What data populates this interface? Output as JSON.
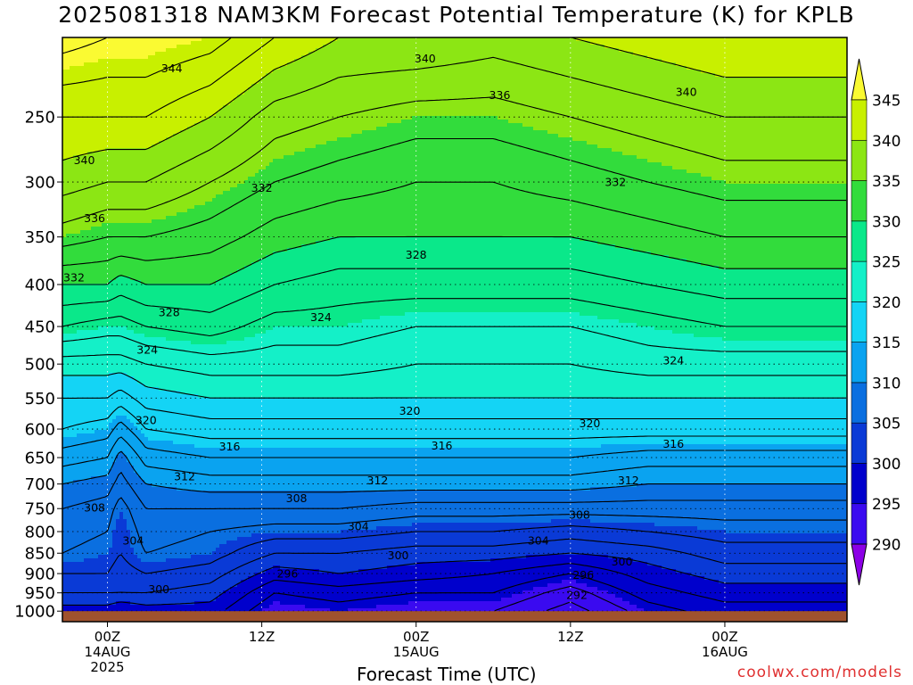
{
  "chart_data": {
    "type": "heatmap",
    "title": "2025081318 NAM3KM Forecast Potential Temperature (K) for KPLB",
    "xlabel": "Forecast Time (UTC)",
    "ylabel": "",
    "y_axis": {
      "scale": "log",
      "reversed": true,
      "ticks": [
        250,
        300,
        350,
        400,
        450,
        500,
        550,
        600,
        650,
        700,
        750,
        800,
        850,
        900,
        950,
        1000
      ],
      "tick_labels": [
        "250",
        "300",
        "350",
        "400",
        "450",
        "500",
        "550",
        "600",
        "650",
        "700",
        "750",
        "800",
        "850",
        "900",
        "950",
        "1000"
      ],
      "range": [
        200,
        1030
      ],
      "ground_level": 1000
    },
    "x_axis": {
      "range_hours": [
        -3.5,
        57.5
      ],
      "ticks": [
        {
          "hour": 0,
          "lines": [
            "00Z",
            "14AUG",
            "2025"
          ]
        },
        {
          "hour": 12,
          "lines": [
            "12Z"
          ]
        },
        {
          "hour": 24,
          "lines": [
            "00Z",
            "15AUG"
          ]
        },
        {
          "hour": 36,
          "lines": [
            "12Z"
          ]
        },
        {
          "hour": 48,
          "lines": [
            "00Z",
            "16AUG"
          ]
        }
      ]
    },
    "colorbar": {
      "levels": [
        290,
        295,
        300,
        305,
        310,
        315,
        320,
        325,
        330,
        335,
        340,
        345
      ],
      "labels": [
        "290",
        "295",
        "300",
        "305",
        "310",
        "315",
        "320",
        "325",
        "330",
        "335",
        "340",
        "345"
      ],
      "colors": [
        "#8c00e6",
        "#3a0af0",
        "#0000cc",
        "#0a3ad6",
        "#0a6fe0",
        "#0aa3f0",
        "#14d4f5",
        "#14f0c8",
        "#0ae88a",
        "#32dc3c",
        "#8ce614",
        "#c8f000",
        "#fafa32"
      ]
    },
    "ground_color": "#a0522d",
    "grid": true,
    "series": [
      {
        "hour": -3.5,
        "profile": [
          [
            1000,
            299
          ],
          [
            950,
            302
          ],
          [
            900,
            304
          ],
          [
            850,
            306
          ],
          [
            800,
            307
          ],
          [
            750,
            308
          ],
          [
            700,
            310
          ],
          [
            650,
            313
          ],
          [
            600,
            316
          ],
          [
            550,
            318
          ],
          [
            500,
            321
          ],
          [
            450,
            326
          ],
          [
            400,
            330
          ],
          [
            350,
            335
          ],
          [
            300,
            339
          ],
          [
            250,
            342
          ],
          [
            200,
            347
          ]
        ]
      },
      {
        "hour": 0,
        "profile": [
          [
            1000,
            299
          ],
          [
            950,
            302
          ],
          [
            900,
            304
          ],
          [
            850,
            305
          ],
          [
            800,
            306
          ],
          [
            750,
            307
          ],
          [
            700,
            309
          ],
          [
            650,
            312
          ],
          [
            600,
            315
          ],
          [
            550,
            318
          ],
          [
            500,
            321
          ],
          [
            450,
            325
          ],
          [
            400,
            330
          ],
          [
            350,
            334
          ],
          [
            300,
            338
          ],
          [
            250,
            342
          ],
          [
            200,
            346
          ]
        ]
      },
      {
        "hour": 1,
        "profile": [
          [
            1000,
            298
          ],
          [
            950,
            302
          ],
          [
            900,
            303
          ],
          [
            850,
            304
          ],
          [
            800,
            304
          ],
          [
            750,
            305
          ],
          [
            700,
            307
          ],
          [
            650,
            309
          ],
          [
            600,
            313
          ],
          [
            550,
            317
          ],
          [
            500,
            321
          ],
          [
            450,
            325
          ],
          [
            400,
            329
          ],
          [
            350,
            334
          ],
          [
            300,
            338
          ],
          [
            250,
            342
          ],
          [
            200,
            346
          ]
        ]
      },
      {
        "hour": 3,
        "profile": [
          [
            1000,
            299
          ],
          [
            950,
            302
          ],
          [
            900,
            304
          ],
          [
            850,
            306
          ],
          [
            800,
            307
          ],
          [
            750,
            308
          ],
          [
            700,
            310
          ],
          [
            650,
            313
          ],
          [
            600,
            316
          ],
          [
            550,
            319
          ],
          [
            500,
            322
          ],
          [
            450,
            326
          ],
          [
            400,
            330
          ],
          [
            350,
            334
          ],
          [
            300,
            338
          ],
          [
            250,
            342
          ],
          [
            200,
            346
          ]
        ]
      },
      {
        "hour": 8,
        "profile": [
          [
            1000,
            299
          ],
          [
            950,
            301
          ],
          [
            900,
            303
          ],
          [
            850,
            305
          ],
          [
            800,
            306
          ],
          [
            750,
            308
          ],
          [
            700,
            311
          ],
          [
            650,
            314
          ],
          [
            600,
            317
          ],
          [
            550,
            320
          ],
          [
            500,
            323
          ],
          [
            450,
            327
          ],
          [
            400,
            330
          ],
          [
            350,
            333
          ],
          [
            300,
            336
          ],
          [
            250,
            340
          ],
          [
            200,
            345
          ]
        ]
      },
      {
        "hour": 13,
        "profile": [
          [
            1000,
            294
          ],
          [
            950,
            296
          ],
          [
            900,
            299
          ],
          [
            850,
            302
          ],
          [
            800,
            305
          ],
          [
            750,
            308
          ],
          [
            700,
            311
          ],
          [
            650,
            314
          ],
          [
            600,
            317
          ],
          [
            550,
            320
          ],
          [
            500,
            323
          ],
          [
            450,
            325
          ],
          [
            400,
            328
          ],
          [
            350,
            331
          ],
          [
            300,
            334
          ],
          [
            250,
            337
          ],
          [
            200,
            342
          ]
        ]
      },
      {
        "hour": 18,
        "profile": [
          [
            1000,
            295
          ],
          [
            950,
            297
          ],
          [
            900,
            300
          ],
          [
            850,
            302
          ],
          [
            800,
            305
          ],
          [
            750,
            308
          ],
          [
            700,
            311
          ],
          [
            650,
            314
          ],
          [
            600,
            317
          ],
          [
            550,
            320
          ],
          [
            500,
            323
          ],
          [
            450,
            325
          ],
          [
            400,
            327
          ],
          [
            350,
            330
          ],
          [
            300,
            333
          ],
          [
            250,
            336
          ],
          [
            200,
            340
          ]
        ]
      },
      {
        "hour": 24,
        "profile": [
          [
            1000,
            294
          ],
          [
            950,
            296
          ],
          [
            900,
            299
          ],
          [
            850,
            301
          ],
          [
            800,
            304
          ],
          [
            750,
            307
          ],
          [
            700,
            311
          ],
          [
            650,
            314
          ],
          [
            600,
            317
          ],
          [
            550,
            320
          ],
          [
            500,
            322
          ],
          [
            450,
            324
          ],
          [
            400,
            327
          ],
          [
            350,
            330
          ],
          [
            300,
            332
          ],
          [
            250,
            335
          ],
          [
            200,
            340
          ]
        ]
      },
      {
        "hour": 30,
        "profile": [
          [
            1000,
            294
          ],
          [
            950,
            296
          ],
          [
            900,
            298
          ],
          [
            850,
            301
          ],
          [
            800,
            304
          ],
          [
            750,
            307
          ],
          [
            700,
            311
          ],
          [
            650,
            314
          ],
          [
            600,
            317
          ],
          [
            550,
            320
          ],
          [
            500,
            322
          ],
          [
            450,
            324
          ],
          [
            400,
            327
          ],
          [
            350,
            330
          ],
          [
            300,
            332
          ],
          [
            250,
            335
          ],
          [
            200,
            339
          ]
        ]
      },
      {
        "hour": 36,
        "profile": [
          [
            1000,
            291
          ],
          [
            950,
            293
          ],
          [
            900,
            296
          ],
          [
            850,
            300
          ],
          [
            800,
            303
          ],
          [
            750,
            307
          ],
          [
            700,
            311
          ],
          [
            650,
            314
          ],
          [
            600,
            317
          ],
          [
            550,
            320
          ],
          [
            500,
            322
          ],
          [
            450,
            324
          ],
          [
            400,
            327
          ],
          [
            350,
            330
          ],
          [
            300,
            333
          ],
          [
            250,
            336
          ],
          [
            200,
            340
          ]
        ]
      },
      {
        "hour": 42,
        "profile": [
          [
            1000,
            295
          ],
          [
            950,
            297
          ],
          [
            900,
            299
          ],
          [
            850,
            301
          ],
          [
            800,
            304
          ],
          [
            750,
            307
          ],
          [
            700,
            310
          ],
          [
            650,
            313
          ],
          [
            600,
            317
          ],
          [
            550,
            320
          ],
          [
            500,
            323
          ],
          [
            450,
            325
          ],
          [
            400,
            328
          ],
          [
            350,
            331
          ],
          [
            300,
            334
          ],
          [
            250,
            337
          ],
          [
            200,
            341
          ]
        ]
      },
      {
        "hour": 48,
        "profile": [
          [
            1000,
            297
          ],
          [
            950,
            299
          ],
          [
            900,
            301
          ],
          [
            850,
            303
          ],
          [
            800,
            305
          ],
          [
            750,
            307
          ],
          [
            700,
            310
          ],
          [
            650,
            313
          ],
          [
            600,
            317
          ],
          [
            550,
            320
          ],
          [
            500,
            323
          ],
          [
            450,
            326
          ],
          [
            400,
            329
          ],
          [
            350,
            332
          ],
          [
            300,
            335
          ],
          [
            250,
            338
          ],
          [
            200,
            342
          ]
        ]
      },
      {
        "hour": 57.5,
        "profile": [
          [
            1000,
            297
          ],
          [
            950,
            299
          ],
          [
            900,
            301
          ],
          [
            850,
            303
          ],
          [
            800,
            305
          ],
          [
            750,
            307
          ],
          [
            700,
            310
          ],
          [
            650,
            313
          ],
          [
            600,
            317
          ],
          [
            550,
            320
          ],
          [
            500,
            323
          ],
          [
            450,
            326
          ],
          [
            400,
            329
          ],
          [
            350,
            332
          ],
          [
            300,
            335
          ],
          [
            250,
            338
          ],
          [
            200,
            342
          ]
        ]
      }
    ],
    "contour_labels": [
      {
        "text": "344",
        "hour": 5,
        "p": 218
      },
      {
        "text": "340",
        "hour": 24.7,
        "p": 212
      },
      {
        "text": "336",
        "hour": 30.5,
        "p": 235
      },
      {
        "text": "340",
        "hour": 45,
        "p": 233
      },
      {
        "text": "340",
        "hour": -1.8,
        "p": 282
      },
      {
        "text": "336",
        "hour": -1,
        "p": 332
      },
      {
        "text": "332",
        "hour": 12,
        "p": 305
      },
      {
        "text": "332",
        "hour": 39.5,
        "p": 300
      },
      {
        "text": "332",
        "hour": -2.6,
        "p": 392
      },
      {
        "text": "328",
        "hour": 24,
        "p": 368
      },
      {
        "text": "328",
        "hour": 4.8,
        "p": 432
      },
      {
        "text": "324",
        "hour": 16.6,
        "p": 438
      },
      {
        "text": "324",
        "hour": 3.1,
        "p": 480
      },
      {
        "text": "324",
        "hour": 44,
        "p": 495
      },
      {
        "text": "320",
        "hour": 3,
        "p": 585
      },
      {
        "text": "320",
        "hour": 23.5,
        "p": 570
      },
      {
        "text": "320",
        "hour": 37.5,
        "p": 590
      },
      {
        "text": "316",
        "hour": 9.5,
        "p": 630
      },
      {
        "text": "316",
        "hour": 26,
        "p": 628
      },
      {
        "text": "316",
        "hour": 44,
        "p": 625
      },
      {
        "text": "312",
        "hour": 6,
        "p": 685
      },
      {
        "text": "312",
        "hour": 21,
        "p": 693
      },
      {
        "text": "312",
        "hour": 40.5,
        "p": 693
      },
      {
        "text": "308",
        "hour": -1,
        "p": 748
      },
      {
        "text": "308",
        "hour": 14.7,
        "p": 728
      },
      {
        "text": "308",
        "hour": 36.7,
        "p": 763
      },
      {
        "text": "304",
        "hour": 2,
        "p": 820
      },
      {
        "text": "304",
        "hour": 19.5,
        "p": 788
      },
      {
        "text": "304",
        "hour": 33.5,
        "p": 820
      },
      {
        "text": "300",
        "hour": 22.6,
        "p": 855
      },
      {
        "text": "300",
        "hour": 4,
        "p": 940
      },
      {
        "text": "300",
        "hour": 40,
        "p": 870
      },
      {
        "text": "296",
        "hour": 14,
        "p": 900
      },
      {
        "text": "296",
        "hour": 37,
        "p": 903
      },
      {
        "text": "292",
        "hour": 36.5,
        "p": 955
      }
    ]
  }
}
